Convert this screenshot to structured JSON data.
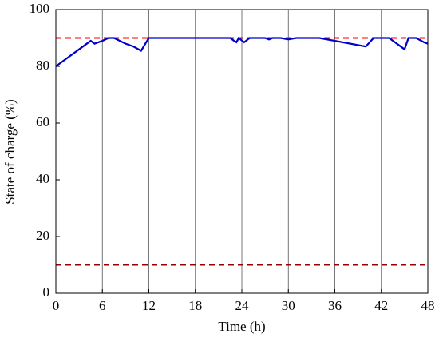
{
  "chart_data": {
    "type": "line",
    "xlabel": "Time (h)",
    "ylabel": "State of charge (%)",
    "x": [
      0,
      4.5,
      5,
      6,
      6.8,
      7.5,
      9,
      10,
      11,
      12,
      22.5,
      23,
      23.3,
      23.6,
      24.3,
      25,
      27,
      27.5,
      28,
      29,
      30,
      31,
      34,
      40,
      41,
      43,
      45,
      45.5,
      46.5,
      47.5,
      48
    ],
    "series": [
      {
        "color": "#0000cc",
        "values": [
          80,
          89,
          88,
          89,
          90,
          90,
          88,
          87,
          85.5,
          90,
          90,
          89,
          88.5,
          90,
          88.5,
          90,
          90,
          89.5,
          90,
          90,
          89.5,
          90,
          90,
          87,
          90,
          90,
          86,
          90,
          90,
          88.5,
          88
        ]
      }
    ],
    "hlines": [
      {
        "value": 90,
        "color": "#ff0000"
      },
      {
        "value": 10,
        "color": "#990000"
      }
    ],
    "xlim": [
      0,
      48
    ],
    "xticks": [
      0,
      6,
      12,
      18,
      24,
      30,
      36,
      42,
      48
    ],
    "ylim": [
      0,
      100
    ],
    "yticks": [
      0,
      20,
      40,
      60,
      80,
      100
    ],
    "grid": "x"
  }
}
